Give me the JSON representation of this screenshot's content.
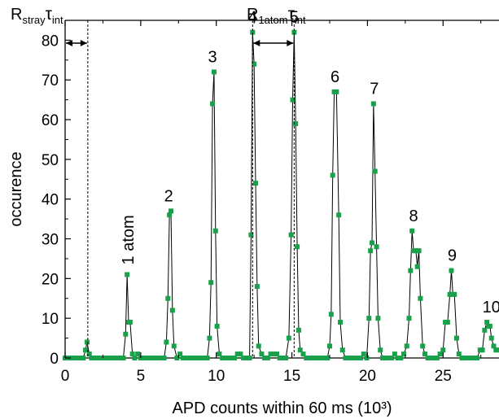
{
  "chart_data": {
    "type": "line",
    "title": "",
    "xlabel": "APD counts within 60 ms (10³)",
    "ylabel": "occurence",
    "xlim": [
      0,
      28.7
    ],
    "ylim": [
      0,
      85
    ],
    "xticks": [
      0,
      5,
      10,
      15,
      20,
      25
    ],
    "yticks": [
      0,
      10,
      20,
      30,
      40,
      50,
      60,
      70,
      80
    ],
    "grid": false,
    "legend": "none",
    "series": [
      {
        "marker_color": "#19a04a",
        "line_color": "#000000",
        "points": [
          [
            0,
            0
          ],
          [
            0.15,
            0
          ],
          [
            0.3,
            0
          ],
          [
            0.45,
            0
          ],
          [
            0.6,
            0
          ],
          [
            0.75,
            0
          ],
          [
            0.9,
            0
          ],
          [
            1.05,
            0
          ],
          [
            1.2,
            0
          ],
          [
            1.35,
            2
          ],
          [
            1.45,
            4
          ],
          [
            1.6,
            1
          ],
          [
            1.75,
            0
          ],
          [
            1.9,
            0
          ],
          [
            2.05,
            0
          ],
          [
            2.2,
            0
          ],
          [
            2.35,
            0
          ],
          [
            2.5,
            0
          ],
          [
            2.65,
            0
          ],
          [
            2.8,
            0
          ],
          [
            2.95,
            0
          ],
          [
            3.1,
            0
          ],
          [
            3.25,
            0
          ],
          [
            3.4,
            0
          ],
          [
            3.55,
            0
          ],
          [
            3.7,
            0
          ],
          [
            3.85,
            0
          ],
          [
            4.0,
            6
          ],
          [
            4.1,
            21
          ],
          [
            4.2,
            9
          ],
          [
            4.3,
            9
          ],
          [
            4.45,
            1
          ],
          [
            4.6,
            0
          ],
          [
            4.8,
            1
          ],
          [
            5.0,
            0
          ],
          [
            5.2,
            0
          ],
          [
            5.4,
            0
          ],
          [
            5.6,
            0
          ],
          [
            5.8,
            0
          ],
          [
            6.0,
            0
          ],
          [
            6.2,
            0
          ],
          [
            6.4,
            0
          ],
          [
            6.55,
            0
          ],
          [
            6.7,
            4
          ],
          [
            6.8,
            15
          ],
          [
            6.9,
            36
          ],
          [
            7.0,
            37
          ],
          [
            7.1,
            12
          ],
          [
            7.2,
            3
          ],
          [
            7.4,
            0
          ],
          [
            7.6,
            1
          ],
          [
            7.8,
            0
          ],
          [
            8.0,
            0
          ],
          [
            8.2,
            0
          ],
          [
            8.4,
            0
          ],
          [
            8.6,
            0
          ],
          [
            8.8,
            0
          ],
          [
            9.0,
            0
          ],
          [
            9.2,
            0
          ],
          [
            9.4,
            0
          ],
          [
            9.55,
            5
          ],
          [
            9.65,
            19
          ],
          [
            9.75,
            64
          ],
          [
            9.85,
            72
          ],
          [
            9.95,
            32
          ],
          [
            10.05,
            8
          ],
          [
            10.2,
            1
          ],
          [
            10.4,
            0
          ],
          [
            10.6,
            0
          ],
          [
            10.8,
            0
          ],
          [
            11.0,
            0
          ],
          [
            11.2,
            0
          ],
          [
            11.4,
            1
          ],
          [
            11.6,
            1
          ],
          [
            11.8,
            0
          ],
          [
            12.0,
            0
          ],
          [
            12.2,
            0
          ],
          [
            12.3,
            31
          ],
          [
            12.4,
            82
          ],
          [
            12.5,
            74
          ],
          [
            12.6,
            44
          ],
          [
            12.7,
            18
          ],
          [
            12.8,
            3
          ],
          [
            13.0,
            1
          ],
          [
            13.2,
            0
          ],
          [
            13.4,
            0
          ],
          [
            13.6,
            1
          ],
          [
            13.8,
            1
          ],
          [
            14.0,
            1
          ],
          [
            14.2,
            0
          ],
          [
            14.4,
            0
          ],
          [
            14.6,
            0
          ],
          [
            14.8,
            5
          ],
          [
            14.95,
            31
          ],
          [
            15.05,
            65
          ],
          [
            15.15,
            82
          ],
          [
            15.25,
            59
          ],
          [
            15.35,
            28
          ],
          [
            15.45,
            7
          ],
          [
            15.55,
            2
          ],
          [
            15.75,
            1
          ],
          [
            15.95,
            0
          ],
          [
            16.15,
            0
          ],
          [
            16.35,
            0
          ],
          [
            16.55,
            0
          ],
          [
            16.75,
            0
          ],
          [
            16.95,
            0
          ],
          [
            17.15,
            0
          ],
          [
            17.35,
            0
          ],
          [
            17.5,
            3
          ],
          [
            17.6,
            11
          ],
          [
            17.7,
            46
          ],
          [
            17.8,
            67
          ],
          [
            17.95,
            67
          ],
          [
            18.1,
            36
          ],
          [
            18.2,
            9
          ],
          [
            18.35,
            2
          ],
          [
            18.55,
            0
          ],
          [
            18.75,
            0
          ],
          [
            18.95,
            0
          ],
          [
            19.15,
            0
          ],
          [
            19.35,
            0
          ],
          [
            19.55,
            0
          ],
          [
            19.75,
            1
          ],
          [
            19.95,
            0
          ],
          [
            20.1,
            10
          ],
          [
            20.2,
            27
          ],
          [
            20.3,
            29
          ],
          [
            20.4,
            64
          ],
          [
            20.5,
            47
          ],
          [
            20.6,
            28
          ],
          [
            20.7,
            10
          ],
          [
            20.85,
            2
          ],
          [
            21.0,
            0
          ],
          [
            21.2,
            0
          ],
          [
            21.4,
            0
          ],
          [
            21.6,
            0
          ],
          [
            21.8,
            1
          ],
          [
            22.0,
            0
          ],
          [
            22.2,
            0
          ],
          [
            22.4,
            1
          ],
          [
            22.6,
            3
          ],
          [
            22.75,
            10
          ],
          [
            22.85,
            22
          ],
          [
            22.95,
            32
          ],
          [
            23.05,
            27
          ],
          [
            23.2,
            27
          ],
          [
            23.3,
            23
          ],
          [
            23.4,
            27
          ],
          [
            23.5,
            15
          ],
          [
            23.65,
            3
          ],
          [
            23.8,
            1
          ],
          [
            24.0,
            0
          ],
          [
            24.2,
            0
          ],
          [
            24.4,
            0
          ],
          [
            24.6,
            0
          ],
          [
            24.8,
            1
          ],
          [
            25.0,
            2
          ],
          [
            25.15,
            9
          ],
          [
            25.3,
            9
          ],
          [
            25.45,
            16
          ],
          [
            25.55,
            22
          ],
          [
            25.65,
            16
          ],
          [
            25.75,
            16
          ],
          [
            25.9,
            5
          ],
          [
            26.05,
            1
          ],
          [
            26.25,
            0
          ],
          [
            26.45,
            0
          ],
          [
            26.65,
            0
          ],
          [
            26.85,
            0
          ],
          [
            27.05,
            0
          ],
          [
            27.25,
            0
          ],
          [
            27.45,
            2
          ],
          [
            27.6,
            2
          ],
          [
            27.75,
            7
          ],
          [
            27.9,
            9
          ],
          [
            28.0,
            8
          ],
          [
            28.1,
            8
          ],
          [
            28.2,
            5
          ],
          [
            28.35,
            3
          ],
          [
            28.5,
            2
          ],
          [
            28.65,
            2
          ]
        ]
      }
    ],
    "annotations": {
      "peak_labels": [
        {
          "text": "1 atom",
          "x": 4.2,
          "y": 21,
          "rotated": true
        },
        {
          "text": "2",
          "x": 6.85,
          "y": 37
        },
        {
          "text": "3",
          "x": 9.75,
          "y": 72
        },
        {
          "text": "4",
          "x": 12.4,
          "y": 82
        },
        {
          "text": "5",
          "x": 15.15,
          "y": 82
        },
        {
          "text": "6",
          "x": 17.85,
          "y": 67
        },
        {
          "text": "7",
          "x": 20.45,
          "y": 64
        },
        {
          "text": "8",
          "x": 23.05,
          "y": 32
        },
        {
          "text": "9",
          "x": 25.6,
          "y": 22
        },
        {
          "text": "10",
          "x": 28.2,
          "y": 9
        }
      ],
      "stray": {
        "label_main": "R",
        "label_sub": "stray",
        "label_tau": "τ",
        "label_tau_sub": "int",
        "x_from": 0,
        "x_to": 1.5
      },
      "atom": {
        "label_main": "R",
        "label_sub": "1atom",
        "label_tau": "τ",
        "label_tau_sub": "int",
        "x_from": 12.4,
        "x_to": 15.15
      }
    }
  }
}
